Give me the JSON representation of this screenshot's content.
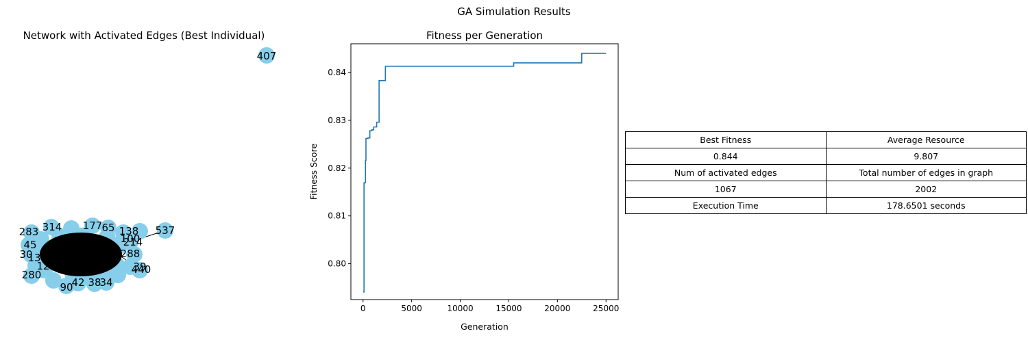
{
  "figure": {
    "title": "GA Simulation Results"
  },
  "chart_data": [
    {
      "type": "network",
      "title": "Network with Activated Edges (Best Individual)",
      "node_color": "#87CEEB",
      "edge_color": "#000000",
      "visible_node_labels": [
        "407",
        "314",
        "177",
        "138",
        "537",
        "283",
        "65",
        "100",
        "45",
        "214",
        "30",
        "13",
        "288",
        "12",
        "39",
        "440",
        "280",
        "90",
        "42",
        "38",
        "34"
      ],
      "nodes_shown": [
        {
          "id": "407",
          "isolated": true
        },
        {
          "id": "537",
          "isolated": false
        },
        {
          "id": "138",
          "isolated": false
        },
        {
          "id": "280",
          "isolated": false
        },
        {
          "id": "440",
          "isolated": false
        },
        {
          "id": "90",
          "isolated": false
        }
      ]
    },
    {
      "type": "line",
      "title": "Fitness per Generation",
      "xlabel": "Generation",
      "ylabel": "Fitness Score",
      "line_color": "#1f77b4",
      "xlim": [
        -1250,
        26250
      ],
      "ylim": [
        0.7925,
        0.846
      ],
      "xticks": [
        0,
        5000,
        10000,
        15000,
        20000,
        25000
      ],
      "yticks": [
        0.8,
        0.81,
        0.82,
        0.83,
        0.84
      ],
      "step": true,
      "x": [
        0,
        100,
        200,
        250,
        300,
        500,
        700,
        900,
        1100,
        1400,
        1650,
        2300,
        15500,
        22500,
        25000
      ],
      "y": [
        0.7941,
        0.8169,
        0.817,
        0.8216,
        0.8262,
        0.8263,
        0.8278,
        0.828,
        0.8286,
        0.8296,
        0.8383,
        0.8413,
        0.842,
        0.844,
        0.844
      ]
    },
    {
      "type": "table",
      "rows": [
        [
          "Best Fitness",
          "Average Resource"
        ],
        [
          "0.844",
          "9.807"
        ],
        [
          "Num of activated edges",
          "Total number of edges in graph"
        ],
        [
          "1067",
          "2002"
        ],
        [
          "Execution Time",
          "178.6501 seconds"
        ]
      ]
    }
  ]
}
